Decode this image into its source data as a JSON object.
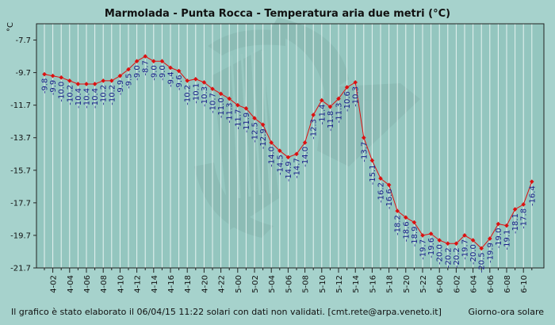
{
  "chart_data": {
    "type": "line",
    "title": "Marmolada - Punta Rocca - Temperatura aria due metri (°C)",
    "ylabel": "°C",
    "xlabel": "Giorno-ora solare",
    "ylim": [
      -21.7,
      -6.7
    ],
    "yticks": [
      -7.7,
      -9.7,
      -11.7,
      -13.7,
      -15.7,
      -17.7,
      -19.7,
      -21.7
    ],
    "xticks": [
      "4-02",
      "4-04",
      "4-06",
      "4-08",
      "4-10",
      "4-12",
      "4-14",
      "4-16",
      "4-18",
      "4-20",
      "4-22",
      "5-00",
      "5-02",
      "5-04",
      "5-06",
      "5-08",
      "5-10",
      "5-12",
      "5-14",
      "5-16",
      "5-18",
      "5-20",
      "5-22",
      "6-00",
      "6-02",
      "6-04",
      "6-06",
      "6-08",
      "6-10"
    ],
    "grid": true,
    "line_color": "#dd1111",
    "marker_color": "#dd1111",
    "series": [
      {
        "values": [
          -9.8,
          -9.9,
          -10.0,
          -10.2,
          -10.4,
          -10.4,
          -10.4,
          -10.2,
          -10.2,
          -9.9,
          -9.5,
          -9.0,
          -8.7,
          -9.0,
          -9.0,
          -9.4,
          -9.6,
          -10.2,
          -10.1,
          -10.3,
          -10.7,
          -11.0,
          -11.3,
          -11.7,
          -11.9,
          -12.5,
          -12.9,
          -14.0,
          -14.5,
          -14.9,
          -14.7,
          -14.0,
          -12.3,
          -11.4,
          -11.8,
          -11.3,
          -10.6,
          -10.3,
          -13.7,
          -15.1,
          -16.2,
          -16.6,
          -18.2,
          -18.6,
          -18.9,
          -19.7,
          -19.6,
          -20.0,
          -20.2,
          -20.2,
          -19.7,
          -20.0,
          -20.5,
          -19.9,
          -19.0,
          -19.1,
          -18.1,
          -17.8,
          -16.4
        ],
        "labels": [
          "-9.8",
          "-9.9",
          "-10.0",
          "-10.2",
          "-10.4",
          "-10.4",
          "-10.4",
          "-10.2",
          "-10.2",
          "-9.9",
          "-9.5",
          "-9.0",
          "-8.7",
          "-9.0",
          "-9.0",
          "-9.4",
          "-9.6",
          "-10.2",
          "-10.1",
          "-10.3",
          "-10.7",
          "-11.0",
          "-11.3",
          "-11.7",
          "-11.9",
          "-12.5",
          "-12.9",
          "-14.0",
          "-14.5",
          "-14.9",
          "-14.7",
          "-14.0",
          "-12.3",
          "-11.4",
          "-11.8",
          "-11.3",
          "-10.6",
          "-10.3",
          "-13.7",
          "-15.1",
          "-16.2",
          "-16.6",
          "-18.2",
          "-18.6",
          "-18.9",
          "-19.7",
          "-19.6",
          "-20.0",
          "-20.2",
          "-20.2",
          "-19.7",
          "-20.0",
          "-20.5",
          "-19.9",
          "-19.0",
          "-19.1",
          "-18.1",
          "-17.8",
          "-16.4"
        ]
      }
    ]
  },
  "footer": {
    "note": "Il grafico è stato elaborato il 06/04/15 11:22 solari con dati non validati. [cmt.rete@arpa.veneto.it]",
    "xlabel": "Giorno-ora solare"
  },
  "colors": {
    "background": "#a6d2cc",
    "plot_background": "#94c6bf",
    "grid": "#e6f3f1",
    "axis": "#222222",
    "label": "#1a1f8a",
    "watermark": "#86b5ae"
  }
}
